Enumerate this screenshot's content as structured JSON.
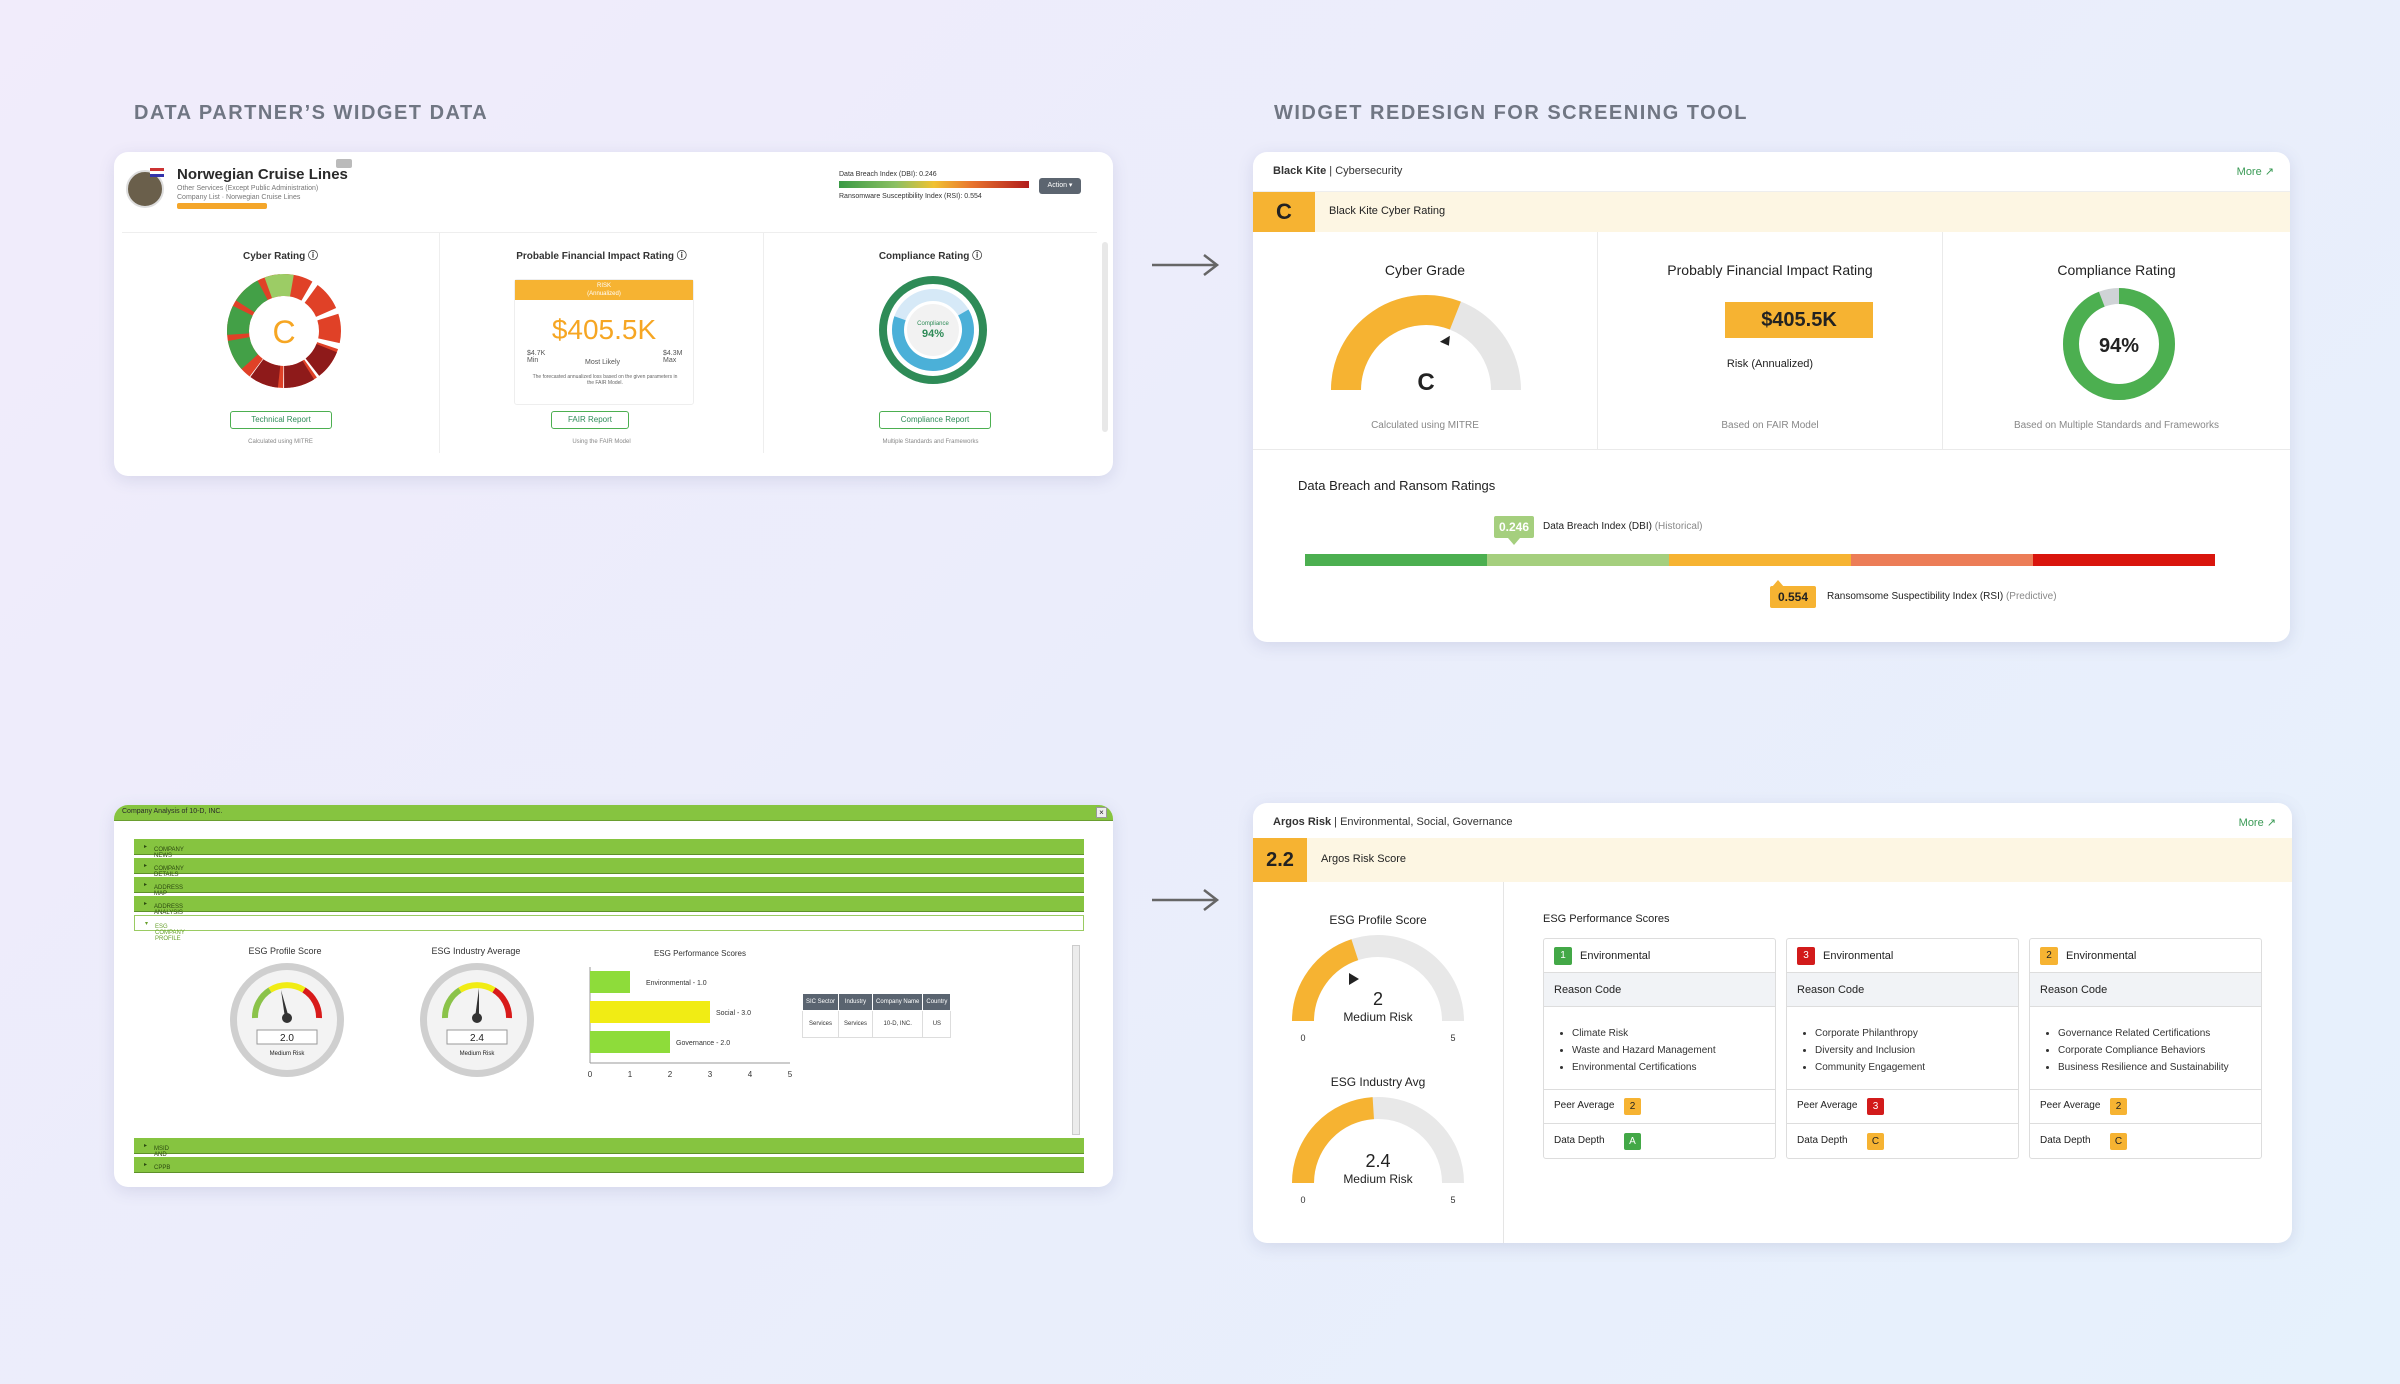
{
  "sections": {
    "left_title": "DATA PARTNER’S WIDGET DATA",
    "right_title": "WIDGET REDESIGN FOR SCREENING TOOL"
  },
  "old_cyber": {
    "company": "Norwegian Cruise Lines",
    "sub1": "Other Services (Except Public Administration)",
    "sub2": "Company List · Norwegian Cruise Lines",
    "dbi_label": "Data Breach Index (DBI): 0.246",
    "rsi_label": "Ransomware Susceptibility Index (RSI): 0.554",
    "action": "Action ▾",
    "cyber_title": "Cyber Rating ⓘ",
    "grade": "C",
    "tech_btn": "Technical Report",
    "tech_note": "Calculated using MITRE",
    "fin_title": "Probable Financial Impact Rating ⓘ",
    "fin_badge_1": "RISK",
    "fin_badge_2": "(Annualized)",
    "fin_value": "$405.5K",
    "fin_min_val": "$4.7K",
    "fin_min": "Min",
    "fin_mid": "Most Likely",
    "fin_max_val": "$4.3M",
    "fin_max": "Max",
    "fin_note": "The forecasted annualized loss based on the given parameters in the FAIR Model.",
    "fair_btn": "FAIR Report",
    "fair_note": "Using the FAIR Model",
    "comp_title": "Compliance Rating ⓘ",
    "comp_small": "Compliance",
    "comp_value": "94%",
    "comp_btn": "Compliance Report",
    "comp_note": "Multiple Standards and Frameworks"
  },
  "new_cyber": {
    "provider": "Black Kite",
    "category": "Cybersecurity",
    "more": "More",
    "grade": "C",
    "band_label": "Black Kite Cyber Rating",
    "cyber_title": "Cyber Grade",
    "cyber_grade": "C",
    "cyber_note": "Calculated using MITRE",
    "cyber_fraction": 0.62,
    "fin_title": "Probably Financial Impact Rating",
    "fin_value": "$405.5K",
    "fin_sub": "Risk (Annualized)",
    "fin_note": "Based on FAIR Model",
    "comp_title": "Compliance Rating",
    "comp_value": "94%",
    "comp_note": "Based on Multiple Standards and Frameworks",
    "comp_fraction": 0.94,
    "ratings_title": "Data Breach and Ransom Ratings",
    "dbi_value": "0.246",
    "dbi_label": "Data Breach Index (DBI)",
    "dbi_hint": "(Historical)",
    "rsi_value": "0.554",
    "rsi_label": "Ransomsome Suspectibility Index (RSI)",
    "rsi_hint": "(Predictive)",
    "scale_colors": [
      "#4caf50",
      "#a5cf7e",
      "#f6b332",
      "#ec7d57",
      "#d9150d"
    ]
  },
  "old_esg": {
    "window_title": "Company Analysis of 10-D, INC.",
    "rows": [
      "COMPANY NEWS",
      "COMPANY DETAILS",
      "ADDRESS MAP",
      "ADDRESS ANALYSIS"
    ],
    "selected": "ESG COMPANY PROFILE",
    "bottom_rows": [
      "MSID AND OFAC SEARCH",
      "CPPB"
    ],
    "profile_label": "ESG Profile Score",
    "profile_value": "2.0",
    "profile_risk": "Medium Risk",
    "industry_label": "ESG Industry Average",
    "industry_value": "2.4",
    "industry_risk": "Medium Risk",
    "perf_title": "ESG Performance Scores",
    "bars": [
      {
        "name": "Environmental - 1.0",
        "value": 1.0,
        "color": "#8edc3a"
      },
      {
        "name": "Social - 3.0",
        "value": 3.0,
        "color": "#f1ec14"
      },
      {
        "name": "Governance - 2.0",
        "value": 2.0,
        "color": "#8edc3a"
      }
    ],
    "axis": [
      "0",
      "1",
      "2",
      "3",
      "4",
      "5"
    ],
    "table_headers": [
      "SIC Sector",
      "Industry",
      "Company Name",
      "Country"
    ],
    "table_row": [
      "Services",
      "Services",
      "10-D, INC.",
      "US"
    ]
  },
  "new_esg": {
    "provider": "Argos Risk",
    "category": "Environmental, Social, Governance",
    "more": "More",
    "score": "2.2",
    "band_label": "Argos Risk Score",
    "profile_title": "ESG Profile Score",
    "profile_value": "2",
    "profile_risk": "Medium Risk",
    "profile_fraction": 0.4,
    "industry_title": "ESG Industry Avg",
    "industry_value": "2.4",
    "industry_risk": "Medium Risk",
    "industry_fraction": 0.48,
    "min": "0",
    "max": "5",
    "perf_title": "ESG Performance Scores",
    "cards": [
      {
        "num": "1",
        "num_color": "#43a847",
        "title": "Environmental",
        "reason": "Reason Code",
        "items": [
          "Climate Risk",
          "Waste and Hazard Management",
          "Environmental Certifications"
        ],
        "peer_label": "Peer Average",
        "peer": "2",
        "peer_color": "#f6b332",
        "depth_label": "Data Depth",
        "depth": "A",
        "depth_color": "#43a847"
      },
      {
        "num": "3",
        "num_color": "#d21b1b",
        "title": "Environmental",
        "reason": "Reason Code",
        "items": [
          "Corporate Philanthropy",
          "Diversity and Inclusion",
          "Community Engagement"
        ],
        "peer_label": "Peer Average",
        "peer": "3",
        "peer_color": "#d21b1b",
        "depth_label": "Data Depth",
        "depth": "C",
        "depth_color": "#f6b332"
      },
      {
        "num": "2",
        "num_color": "#f6b332",
        "title": "Environmental",
        "reason": "Reason Code",
        "items": [
          "Governance Related Certifications",
          "Corporate Compliance Behaviors",
          "Business Resilience and Sustainability"
        ],
        "peer_label": "Peer Average",
        "peer": "2",
        "peer_color": "#f6b332",
        "depth_label": "Data Depth",
        "depth": "C",
        "depth_color": "#f6b332"
      }
    ]
  }
}
